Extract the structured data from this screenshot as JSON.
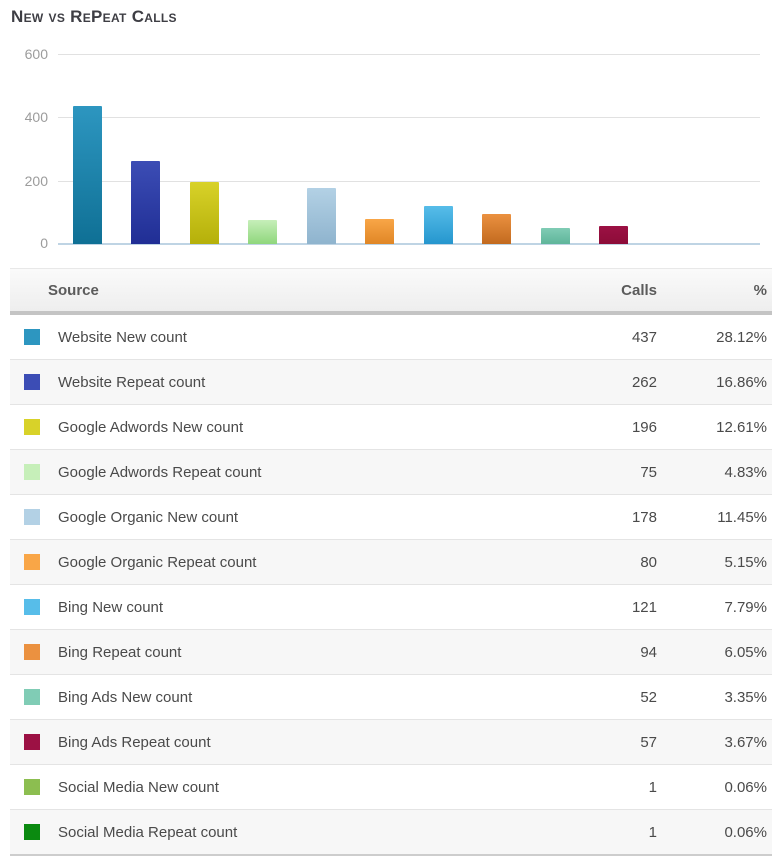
{
  "title": "New vs RePeat Calls",
  "chart_data": {
    "type": "bar",
    "title": "New vs RePeat Calls",
    "xlabel": "",
    "ylabel": "",
    "ylim": [
      0,
      600
    ],
    "ytick_labels": [
      "600",
      "400",
      "200",
      "0"
    ],
    "grid": true,
    "legend_position": "none (legend shown as table below chart)",
    "categories": [
      "Website New count",
      "Website Repeat count",
      "Google Adwords New count",
      "Google Adwords Repeat count",
      "Google Organic New count",
      "Google Organic Repeat count",
      "Bing New count",
      "Bing Repeat count",
      "Bing Ads New count",
      "Bing Ads Repeat count",
      "Social Media New count",
      "Social Media Repeat count"
    ],
    "values": [
      437,
      262,
      196,
      75,
      178,
      80,
      121,
      94,
      52,
      57,
      1,
      1
    ],
    "colors": [
      "#2d96c0",
      "#3c4db5",
      "#d8d229",
      "#c6efb9",
      "#b3d1e5",
      "#f9a647",
      "#57bde9",
      "#eb9140",
      "#80ccb5",
      "#9c1144",
      "#8cbe50",
      "#0b8a10"
    ],
    "colors_dark": [
      "#0f7095",
      "#202e95",
      "#b5b00a",
      "#8fd77c",
      "#8fb4ce",
      "#e08626",
      "#2596ce",
      "#c26a1f",
      "#5fb59a",
      "#8c0c38",
      "#6fa235",
      "#076e0b"
    ]
  },
  "table": {
    "headers": {
      "source": "Source",
      "calls": "Calls",
      "pct": "%"
    },
    "rows": [
      {
        "label": "Website New count",
        "calls": "437",
        "pct": "28.12%",
        "color": "#2d96c0"
      },
      {
        "label": "Website Repeat count",
        "calls": "262",
        "pct": "16.86%",
        "color": "#3c4db5"
      },
      {
        "label": "Google Adwords New count",
        "calls": "196",
        "pct": "12.61%",
        "color": "#d8d229"
      },
      {
        "label": "Google Adwords Repeat count",
        "calls": "75",
        "pct": "4.83%",
        "color": "#c6efb9"
      },
      {
        "label": "Google Organic New count",
        "calls": "178",
        "pct": "11.45%",
        "color": "#b3d1e5"
      },
      {
        "label": "Google Organic Repeat count",
        "calls": "80",
        "pct": "5.15%",
        "color": "#f9a647"
      },
      {
        "label": "Bing New count",
        "calls": "121",
        "pct": "7.79%",
        "color": "#57bde9"
      },
      {
        "label": "Bing Repeat count",
        "calls": "94",
        "pct": "6.05%",
        "color": "#eb9140"
      },
      {
        "label": "Bing Ads New count",
        "calls": "52",
        "pct": "3.35%",
        "color": "#80ccb5"
      },
      {
        "label": "Bing Ads Repeat count",
        "calls": "57",
        "pct": "3.67%",
        "color": "#9c1144"
      },
      {
        "label": "Social Media New count",
        "calls": "1",
        "pct": "0.06%",
        "color": "#8cbe50"
      },
      {
        "label": "Social Media Repeat count",
        "calls": "1",
        "pct": "0.06%",
        "color": "#0b8a10"
      }
    ]
  }
}
